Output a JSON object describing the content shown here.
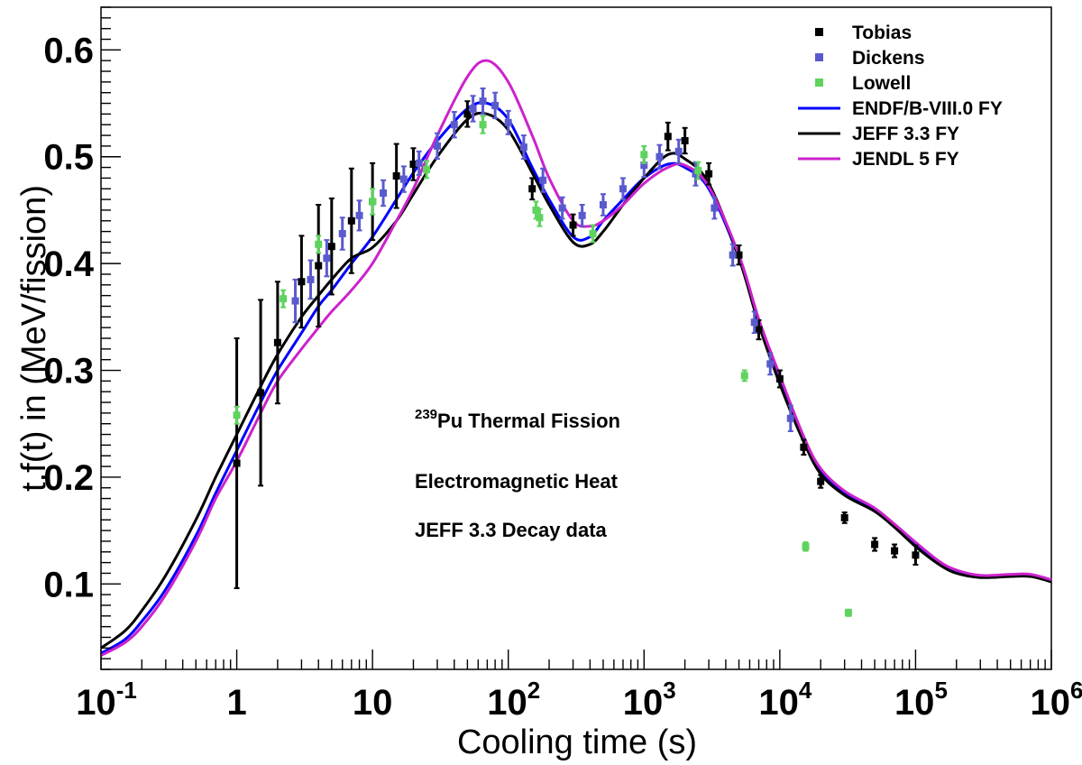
{
  "chart_data": {
    "type": "scatter",
    "xlabel": "Cooling time (s)",
    "ylabel": "t.f(t) in (MeV/fission)",
    "xscale": "log",
    "xlim": [
      0.1,
      1000000
    ],
    "ylim": [
      0.02,
      0.64
    ],
    "grid": false,
    "legend_position": "top-right",
    "x_tick_labels": [
      {
        "value": 0.1,
        "base": "10",
        "exp": "-1"
      },
      {
        "value": 1,
        "base": "1",
        "exp": ""
      },
      {
        "value": 10,
        "base": "10",
        "exp": ""
      },
      {
        "value": 100,
        "base": "10",
        "exp": "2"
      },
      {
        "value": 1000,
        "base": "10",
        "exp": "3"
      },
      {
        "value": 10000,
        "base": "10",
        "exp": "4"
      },
      {
        "value": 100000,
        "base": "10",
        "exp": "5"
      },
      {
        "value": 1000000,
        "base": "10",
        "exp": "6"
      }
    ],
    "y_tick_labels": [
      "0.1",
      "0.2",
      "0.3",
      "0.4",
      "0.5",
      "0.6"
    ],
    "y_tick_values": [
      0.1,
      0.2,
      0.3,
      0.4,
      0.5,
      0.6
    ],
    "annotations": {
      "line1_sup": "239",
      "line1_text": "Pu Thermal Fission",
      "line2": "Electromagnetic Heat",
      "line3": "JEFF 3.3 Decay data"
    },
    "scatter_series": [
      {
        "name": "Tobias",
        "color": "#000000",
        "points": [
          {
            "x": 1.0,
            "y": 0.213,
            "err": 0.117
          },
          {
            "x": 1.5,
            "y": 0.279,
            "err": 0.087
          },
          {
            "x": 2.0,
            "y": 0.326,
            "err": 0.057
          },
          {
            "x": 3.0,
            "y": 0.383,
            "err": 0.043
          },
          {
            "x": 4.0,
            "y": 0.398,
            "err": 0.057
          },
          {
            "x": 5.0,
            "y": 0.416,
            "err": 0.045
          },
          {
            "x": 7.0,
            "y": 0.44,
            "err": 0.049
          },
          {
            "x": 10.0,
            "y": 0.458,
            "err": 0.036
          },
          {
            "x": 15.0,
            "y": 0.482,
            "err": 0.03
          },
          {
            "x": 20.0,
            "y": 0.493,
            "err": 0.015
          },
          {
            "x": 50.0,
            "y": 0.54,
            "err": 0.012
          },
          {
            "x": 150.0,
            "y": 0.47,
            "err": 0.01
          },
          {
            "x": 300.0,
            "y": 0.436,
            "err": 0.01
          },
          {
            "x": 1500.0,
            "y": 0.519,
            "err": 0.013
          },
          {
            "x": 2000.0,
            "y": 0.515,
            "err": 0.012
          },
          {
            "x": 3000.0,
            "y": 0.484,
            "err": 0.01
          },
          {
            "x": 5000.0,
            "y": 0.408,
            "err": 0.009
          },
          {
            "x": 7000.0,
            "y": 0.338,
            "err": 0.009
          },
          {
            "x": 10000.0,
            "y": 0.292,
            "err": 0.008
          },
          {
            "x": 15000.0,
            "y": 0.228,
            "err": 0.007
          },
          {
            "x": 20000.0,
            "y": 0.196,
            "err": 0.006
          },
          {
            "x": 30000.0,
            "y": 0.162,
            "err": 0.005
          },
          {
            "x": 50000.0,
            "y": 0.137,
            "err": 0.006
          },
          {
            "x": 70000.0,
            "y": 0.131,
            "err": 0.006
          },
          {
            "x": 100000.0,
            "y": 0.127,
            "err": 0.009
          }
        ]
      },
      {
        "name": "Dickens",
        "color": "#5a5acf",
        "points": [
          {
            "x": 2.7,
            "y": 0.365,
            "err": 0.02
          },
          {
            "x": 3.5,
            "y": 0.385,
            "err": 0.018
          },
          {
            "x": 4.6,
            "y": 0.405,
            "err": 0.017
          },
          {
            "x": 6.0,
            "y": 0.428,
            "err": 0.015
          },
          {
            "x": 8.0,
            "y": 0.445,
            "err": 0.014
          },
          {
            "x": 12.0,
            "y": 0.466,
            "err": 0.012
          },
          {
            "x": 17.0,
            "y": 0.479,
            "err": 0.012
          },
          {
            "x": 22.0,
            "y": 0.494,
            "err": 0.011
          },
          {
            "x": 30.0,
            "y": 0.51,
            "err": 0.012
          },
          {
            "x": 40.0,
            "y": 0.53,
            "err": 0.012
          },
          {
            "x": 55.0,
            "y": 0.545,
            "err": 0.012
          },
          {
            "x": 65.0,
            "y": 0.552,
            "err": 0.012
          },
          {
            "x": 80.0,
            "y": 0.548,
            "err": 0.012
          },
          {
            "x": 100.0,
            "y": 0.532,
            "err": 0.011
          },
          {
            "x": 130.0,
            "y": 0.509,
            "err": 0.011
          },
          {
            "x": 180.0,
            "y": 0.478,
            "err": 0.011
          },
          {
            "x": 250.0,
            "y": 0.452,
            "err": 0.01
          },
          {
            "x": 350.0,
            "y": 0.445,
            "err": 0.01
          },
          {
            "x": 500.0,
            "y": 0.455,
            "err": 0.01
          },
          {
            "x": 700.0,
            "y": 0.47,
            "err": 0.01
          },
          {
            "x": 1000.0,
            "y": 0.492,
            "err": 0.011
          },
          {
            "x": 1300.0,
            "y": 0.5,
            "err": 0.011
          },
          {
            "x": 1800.0,
            "y": 0.505,
            "err": 0.011
          },
          {
            "x": 2400.0,
            "y": 0.484,
            "err": 0.011
          },
          {
            "x": 3300.0,
            "y": 0.452,
            "err": 0.01
          },
          {
            "x": 4500.0,
            "y": 0.408,
            "err": 0.01
          },
          {
            "x": 6500.0,
            "y": 0.345,
            "err": 0.01
          },
          {
            "x": 8500.0,
            "y": 0.306,
            "err": 0.01
          },
          {
            "x": 12000.0,
            "y": 0.255,
            "err": 0.012
          }
        ]
      },
      {
        "name": "Lowell",
        "color": "#5ed35e",
        "points": [
          {
            "x": 1.0,
            "y": 0.258,
            "err": 0.008
          },
          {
            "x": 2.2,
            "y": 0.367,
            "err": 0.008
          },
          {
            "x": 4.0,
            "y": 0.418,
            "err": 0.008
          },
          {
            "x": 10.0,
            "y": 0.458,
            "err": 0.012
          },
          {
            "x": 25.0,
            "y": 0.488,
            "err": 0.008
          },
          {
            "x": 65.0,
            "y": 0.53,
            "err": 0.008
          },
          {
            "x": 160.0,
            "y": 0.45,
            "err": 0.008
          },
          {
            "x": 170.0,
            "y": 0.443,
            "err": 0.008
          },
          {
            "x": 420.0,
            "y": 0.428,
            "err": 0.008
          },
          {
            "x": 1000.0,
            "y": 0.502,
            "err": 0.008
          },
          {
            "x": 2500.0,
            "y": 0.487,
            "err": 0.008
          },
          {
            "x": 5500.0,
            "y": 0.295,
            "err": 0.005
          },
          {
            "x": 15500.0,
            "y": 0.135,
            "err": 0.004
          },
          {
            "x": 32000.0,
            "y": 0.073,
            "err": 0.003
          }
        ]
      }
    ],
    "line_series": [
      {
        "name": "ENDF/B-VIII.0 FY",
        "color": "#0000ff",
        "x": [
          0.1,
          0.15,
          0.2,
          0.3,
          0.5,
          0.7,
          1,
          1.5,
          2,
          3,
          4,
          5,
          7,
          10,
          15,
          20,
          30,
          50,
          70,
          100,
          150,
          200,
          300,
          400,
          500,
          700,
          1000,
          1500,
          2000,
          3000,
          5000,
          7000,
          10000,
          15000,
          20000,
          30000,
          50000,
          70000,
          100000,
          150000,
          200000,
          300000,
          500000,
          700000,
          1000000
        ],
        "y": [
          0.035,
          0.048,
          0.065,
          0.095,
          0.145,
          0.185,
          0.225,
          0.27,
          0.3,
          0.335,
          0.36,
          0.375,
          0.4,
          0.425,
          0.46,
          0.485,
          0.515,
          0.545,
          0.55,
          0.535,
          0.49,
          0.46,
          0.425,
          0.425,
          0.44,
          0.46,
          0.48,
          0.493,
          0.49,
          0.47,
          0.405,
          0.345,
          0.29,
          0.235,
          0.205,
          0.185,
          0.17,
          0.155,
          0.138,
          0.12,
          0.112,
          0.107,
          0.108,
          0.108,
          0.103
        ]
      },
      {
        "name": "JEFF 3.3 FY",
        "color": "#000000",
        "x": [
          0.1,
          0.15,
          0.2,
          0.3,
          0.5,
          0.7,
          1,
          1.5,
          2,
          3,
          4,
          5,
          7,
          10,
          15,
          20,
          30,
          50,
          70,
          100,
          150,
          200,
          300,
          400,
          500,
          700,
          1000,
          1500,
          2000,
          3000,
          5000,
          7000,
          10000,
          15000,
          20000,
          30000,
          50000,
          70000,
          100000,
          150000,
          200000,
          300000,
          500000,
          700000,
          1000000
        ],
        "y": [
          0.04,
          0.056,
          0.075,
          0.108,
          0.16,
          0.2,
          0.24,
          0.285,
          0.315,
          0.35,
          0.37,
          0.385,
          0.405,
          0.415,
          0.44,
          0.465,
          0.5,
          0.535,
          0.54,
          0.525,
          0.485,
          0.455,
          0.42,
          0.418,
          0.43,
          0.455,
          0.48,
          0.502,
          0.498,
          0.475,
          0.405,
          0.343,
          0.287,
          0.233,
          0.203,
          0.183,
          0.168,
          0.153,
          0.135,
          0.118,
          0.11,
          0.106,
          0.107,
          0.107,
          0.102
        ]
      },
      {
        "name": "JENDL 5 FY",
        "color": "#cc22cc",
        "x": [
          0.1,
          0.15,
          0.2,
          0.3,
          0.5,
          0.7,
          1,
          1.5,
          2,
          3,
          4,
          5,
          7,
          10,
          15,
          20,
          30,
          50,
          70,
          100,
          150,
          200,
          300,
          400,
          500,
          700,
          1000,
          1500,
          2000,
          3000,
          5000,
          7000,
          10000,
          15000,
          20000,
          30000,
          50000,
          70000,
          100000,
          150000,
          200000,
          300000,
          500000,
          700000,
          1000000
        ],
        "y": [
          0.033,
          0.045,
          0.06,
          0.09,
          0.14,
          0.18,
          0.215,
          0.26,
          0.29,
          0.32,
          0.34,
          0.355,
          0.375,
          0.4,
          0.44,
          0.47,
          0.52,
          0.575,
          0.59,
          0.57,
          0.52,
          0.48,
          0.44,
          0.435,
          0.44,
          0.455,
          0.475,
          0.49,
          0.492,
          0.472,
          0.408,
          0.348,
          0.295,
          0.238,
          0.208,
          0.187,
          0.171,
          0.156,
          0.139,
          0.121,
          0.113,
          0.108,
          0.109,
          0.109,
          0.104
        ]
      }
    ],
    "legend": [
      {
        "label": "Tobias",
        "kind": "marker",
        "color": "#000000"
      },
      {
        "label": "Dickens",
        "kind": "marker",
        "color": "#5a5acf"
      },
      {
        "label": "Lowell",
        "kind": "marker",
        "color": "#5ed35e"
      },
      {
        "label": "ENDF/B-VIII.0 FY",
        "kind": "line",
        "color": "#0000ff"
      },
      {
        "label": "JEFF 3.3 FY",
        "kind": "line",
        "color": "#000000"
      },
      {
        "label": "JENDL 5 FY",
        "kind": "line",
        "color": "#cc22cc"
      }
    ]
  }
}
